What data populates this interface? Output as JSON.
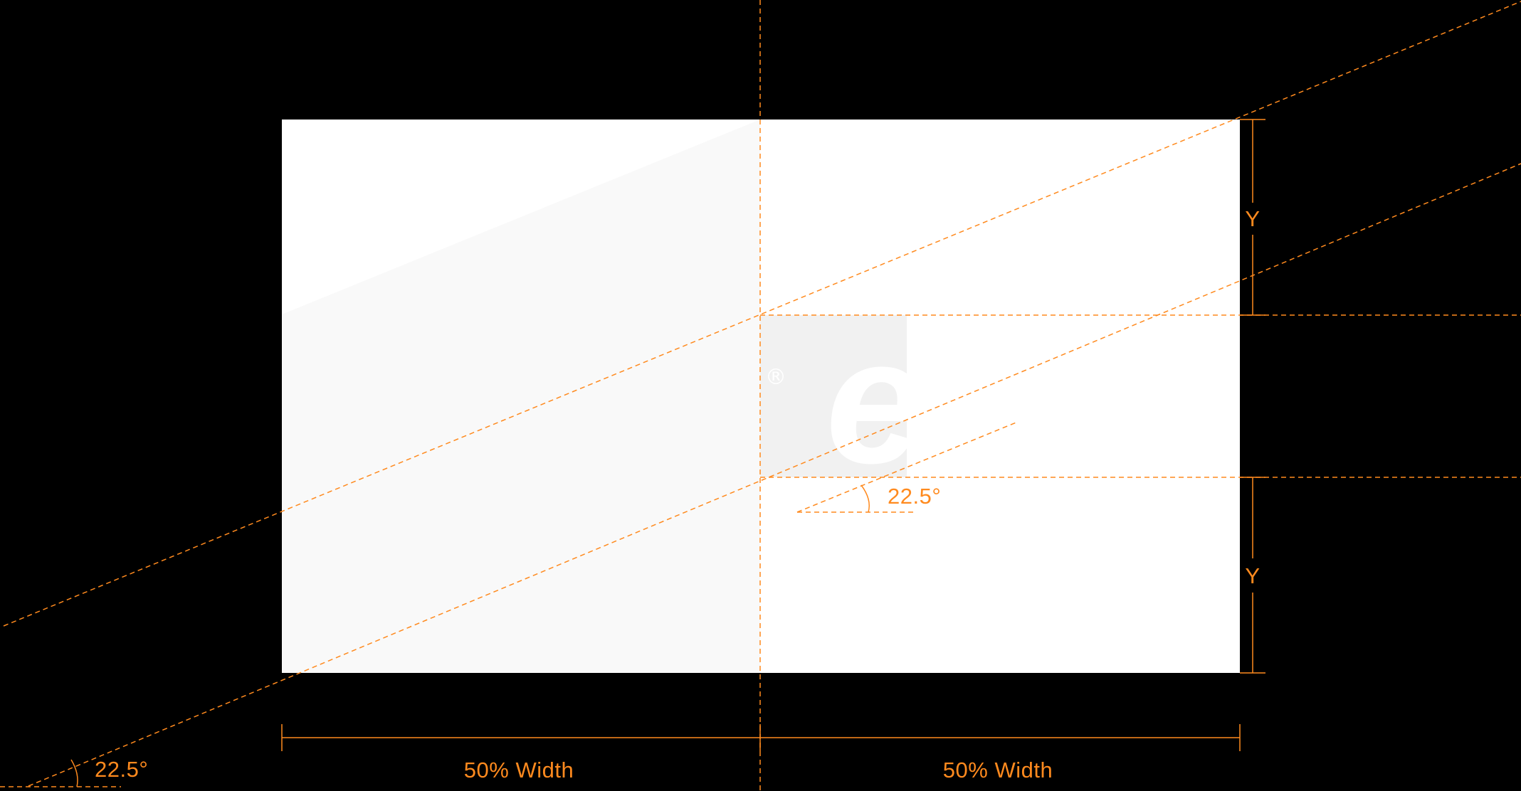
{
  "colors": {
    "background": "#000000",
    "card": "#ffffff",
    "card_tint": "#f9f9f9",
    "guide": "#ff8a1e",
    "logo_square": "#f1f1f1",
    "logo_letter": "#ffffff"
  },
  "logo": {
    "letters": "ee",
    "registered_mark": "®"
  },
  "annotations": {
    "angle_inner": "22.5°",
    "angle_outer": "22.5°",
    "y_top": "Y",
    "y_bottom": "Y",
    "width_left": "50% Width",
    "width_right": "50% Width"
  },
  "icons": {
    "angle_arc": "angle-arc-icon"
  }
}
